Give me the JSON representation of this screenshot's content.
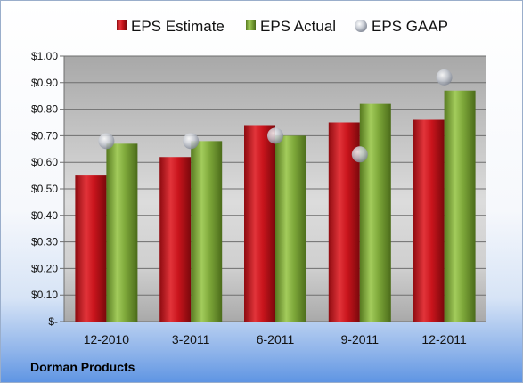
{
  "company": "Dorman Products",
  "colors": {
    "estimate": "#c9141c",
    "actual": "#7ea83a",
    "gaap": "#c8ccd4"
  },
  "chart_data": {
    "type": "bar",
    "categories": [
      "12-2010",
      "3-2011",
      "6-2011",
      "9-2011",
      "12-2011"
    ],
    "series": [
      {
        "name": "EPS Estimate",
        "kind": "bar",
        "values": [
          0.55,
          0.62,
          0.74,
          0.75,
          0.76
        ]
      },
      {
        "name": "EPS Actual",
        "kind": "bar",
        "values": [
          0.67,
          0.68,
          0.7,
          0.82,
          0.87
        ]
      },
      {
        "name": "EPS GAAP",
        "kind": "marker",
        "values": [
          0.68,
          0.68,
          0.7,
          0.63,
          0.92
        ]
      }
    ],
    "ylim": [
      0,
      1.0
    ],
    "yticks": [
      {
        "value": 0,
        "label": "$-"
      },
      {
        "value": 0.1,
        "label": "$0.10"
      },
      {
        "value": 0.2,
        "label": "$0.20"
      },
      {
        "value": 0.3,
        "label": "$0.30"
      },
      {
        "value": 0.4,
        "label": "$0.40"
      },
      {
        "value": 0.5,
        "label": "$0.50"
      },
      {
        "value": 0.6,
        "label": "$0.60"
      },
      {
        "value": 0.7,
        "label": "$0.70"
      },
      {
        "value": 0.8,
        "label": "$0.80"
      },
      {
        "value": 0.9,
        "label": "$0.90"
      },
      {
        "value": 1.0,
        "label": "$1.00"
      }
    ],
    "grid": true,
    "legend": "top"
  }
}
